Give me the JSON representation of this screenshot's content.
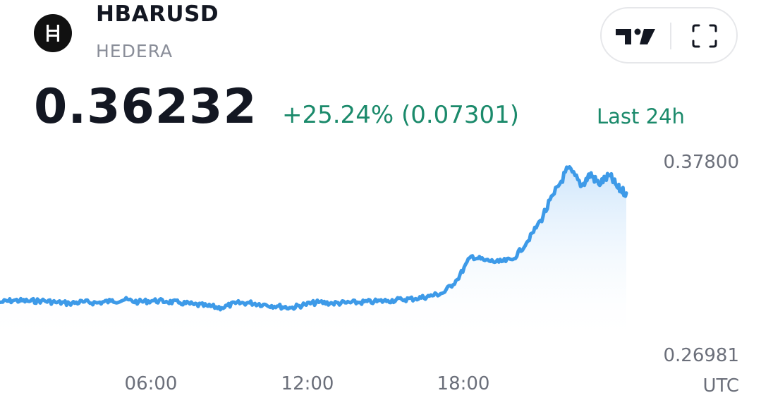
{
  "header": {
    "symbol": "HBARUSD",
    "exchange": "HEDERA",
    "logo_icon": "hedera-logo-icon"
  },
  "toolbar": {
    "tradingview_icon": "tradingview-logo-icon",
    "fullscreen_icon": "fullscreen-icon"
  },
  "quote": {
    "price": "0.36232",
    "change": "+25.24% (0.07301)",
    "period": "Last 24h",
    "change_color": "#1b8a6b"
  },
  "chart_data": {
    "type": "area",
    "xlabel": "",
    "ylabel": "",
    "title": "",
    "timezone_label": "UTC",
    "x_ticks": [
      "06:00",
      "12:00",
      "18:00"
    ],
    "y_ticks": [
      "0.37800",
      "0.26981"
    ],
    "ylim": [
      0.26981,
      0.378
    ],
    "xlim": [
      2.0,
      24.6
    ],
    "line_color": "#3d9ae8",
    "fill_color_top": "#cfe6fb",
    "x": [
      2.0,
      2.5,
      3.0,
      3.5,
      4.0,
      4.5,
      5.0,
      5.5,
      6.0,
      6.5,
      7.0,
      7.5,
      8.0,
      8.5,
      9.0,
      9.5,
      10.0,
      10.5,
      11.0,
      11.5,
      12.0,
      12.5,
      13.0,
      13.5,
      14.0,
      14.5,
      15.0,
      15.5,
      16.0,
      16.5,
      17.0,
      17.5,
      18.0,
      18.5,
      19.0,
      19.5,
      20.0,
      20.5,
      21.0,
      21.5,
      22.0,
      22.5,
      23.0,
      23.3,
      23.6,
      24.0,
      24.3,
      24.6
    ],
    "y": [
      0.2938,
      0.295,
      0.2945,
      0.2948,
      0.2938,
      0.2932,
      0.294,
      0.2935,
      0.2945,
      0.2953,
      0.294,
      0.2948,
      0.2943,
      0.2935,
      0.2925,
      0.2915,
      0.2905,
      0.2932,
      0.2935,
      0.2925,
      0.2915,
      0.2905,
      0.2925,
      0.2938,
      0.2932,
      0.2935,
      0.2938,
      0.2942,
      0.2948,
      0.2955,
      0.296,
      0.2975,
      0.2995,
      0.3075,
      0.3215,
      0.319,
      0.318,
      0.3195,
      0.3295,
      0.343,
      0.359,
      0.3745,
      0.364,
      0.371,
      0.365,
      0.37,
      0.3625,
      0.3595
    ]
  }
}
